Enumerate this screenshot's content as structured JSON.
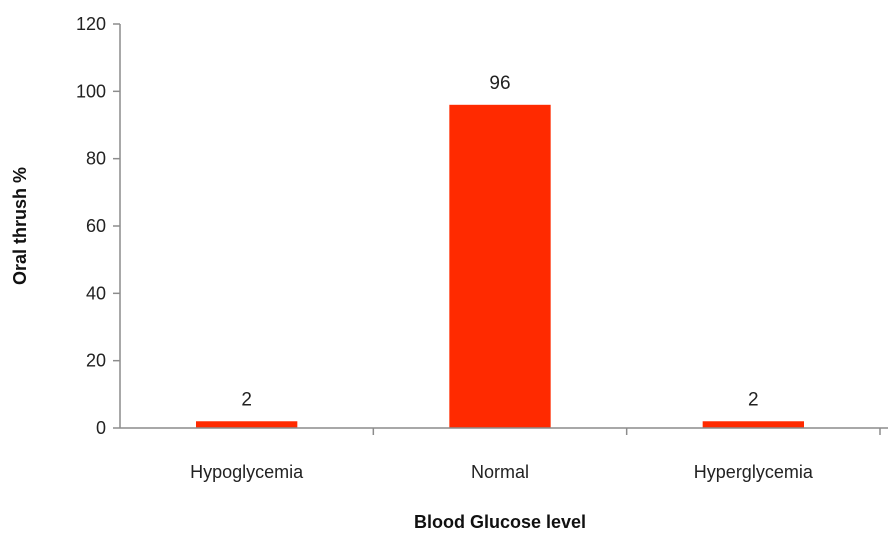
{
  "chart_data": {
    "type": "bar",
    "categories": [
      "Hypoglycemia",
      "Normal",
      "Hyperglycemia"
    ],
    "values": [
      2,
      96,
      2
    ],
    "data_labels": [
      "2",
      "96",
      "2"
    ],
    "title": "",
    "xlabel": "Blood Glucose level",
    "ylabel": "Oral thrush %",
    "ylim": [
      0,
      120
    ],
    "yticks": [
      0,
      20,
      40,
      60,
      80,
      100,
      120
    ],
    "grid": false,
    "legend": "none",
    "bar_color": "#ff2a00"
  }
}
